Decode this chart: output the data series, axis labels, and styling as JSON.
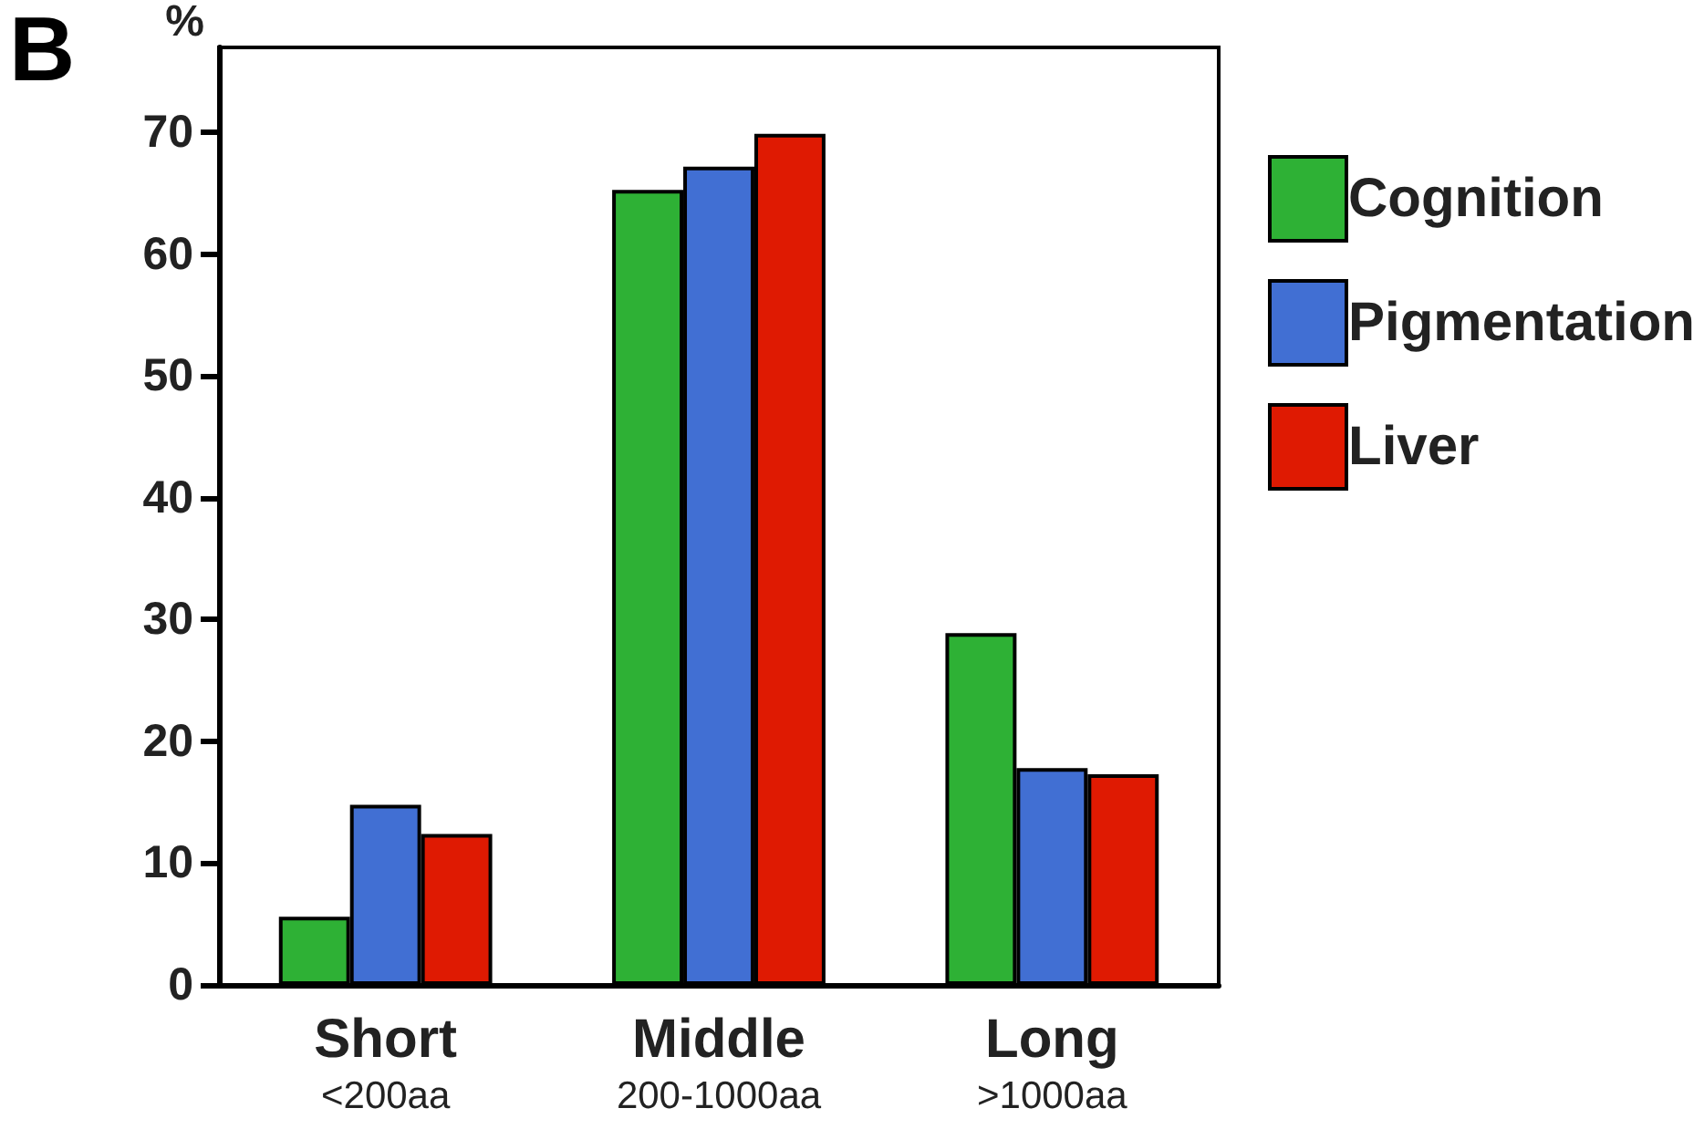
{
  "chart_data": {
    "type": "bar",
    "categories": [
      "Short\n<200aa",
      "Middle\n200-1000aa",
      "Long\n>1000aa"
    ],
    "series": [
      {
        "name": "Cognition",
        "color": "#2eb135",
        "values": [
          5.6,
          65.3,
          28.9
        ]
      },
      {
        "name": "Pigmentation",
        "color": "#416fd3",
        "values": [
          14.8,
          67.2,
          17.8
        ]
      },
      {
        "name": "Liver",
        "color": "#df1a02",
        "values": [
          12.4,
          69.9,
          17.3
        ]
      }
    ],
    "ylabel": "%",
    "ylim": [
      0,
      77
    ],
    "yticks": [
      0,
      10,
      20,
      30,
      40,
      50,
      60,
      70
    ],
    "annotations": [
      "B"
    ],
    "grid": false,
    "legend": "right"
  }
}
